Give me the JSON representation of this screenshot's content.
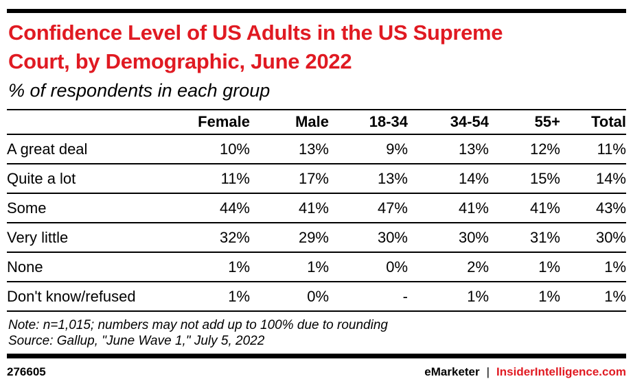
{
  "header": {
    "title_lines": [
      "Confidence Level of US Adults in the US Supreme",
      "Court, by Demographic, June 2022"
    ],
    "subtitle": "% of respondents in each group"
  },
  "table": {
    "columns": [
      "Female",
      "Male",
      "18-34",
      "34-54",
      "55+",
      "Total"
    ],
    "rows": [
      {
        "label": "A great deal",
        "values": [
          "10%",
          "13%",
          "9%",
          "13%",
          "12%",
          "11%"
        ]
      },
      {
        "label": "Quite a lot",
        "values": [
          "11%",
          "17%",
          "13%",
          "14%",
          "15%",
          "14%"
        ]
      },
      {
        "label": "Some",
        "values": [
          "44%",
          "41%",
          "47%",
          "41%",
          "41%",
          "43%"
        ]
      },
      {
        "label": "Very little",
        "values": [
          "32%",
          "29%",
          "30%",
          "30%",
          "31%",
          "30%"
        ]
      },
      {
        "label": "None",
        "values": [
          "1%",
          "1%",
          "0%",
          "2%",
          "1%",
          "1%"
        ]
      },
      {
        "label": "Don't know/refused",
        "values": [
          "1%",
          "0%",
          "-",
          "1%",
          "1%",
          "1%"
        ]
      }
    ]
  },
  "footnotes": {
    "note": "Note: n=1,015; numbers may not add up to 100% due to rounding",
    "source": "Source: Gallup, \"June Wave 1,\" July 5, 2022"
  },
  "footer": {
    "chart_number": "276605",
    "brand": "eMarketer",
    "separator": "|",
    "site": "InsiderIntelligence.com"
  },
  "colors": {
    "accent_red": "#e01a22",
    "text": "#000000",
    "rule": "#000000"
  },
  "chart_data": {
    "type": "table",
    "title": "Confidence Level of US Adults in the US Supreme Court, by Demographic, June 2022",
    "subtitle": "% of respondents in each group",
    "unit": "%",
    "categories": [
      "Female",
      "Male",
      "18-34",
      "34-54",
      "55+",
      "Total"
    ],
    "series": [
      {
        "name": "A great deal",
        "values": [
          10,
          13,
          9,
          13,
          12,
          11
        ]
      },
      {
        "name": "Quite a lot",
        "values": [
          11,
          17,
          13,
          14,
          15,
          14
        ]
      },
      {
        "name": "Some",
        "values": [
          44,
          41,
          47,
          41,
          41,
          43
        ]
      },
      {
        "name": "Very little",
        "values": [
          32,
          29,
          30,
          30,
          31,
          30
        ]
      },
      {
        "name": "None",
        "values": [
          1,
          1,
          0,
          2,
          1,
          1
        ]
      },
      {
        "name": "Don't know/refused",
        "values": [
          1,
          0,
          null,
          1,
          1,
          1
        ]
      }
    ],
    "note": "n=1,015; numbers may not add up to 100% due to rounding",
    "source": "Gallup, \"June Wave 1,\" July 5, 2022"
  }
}
